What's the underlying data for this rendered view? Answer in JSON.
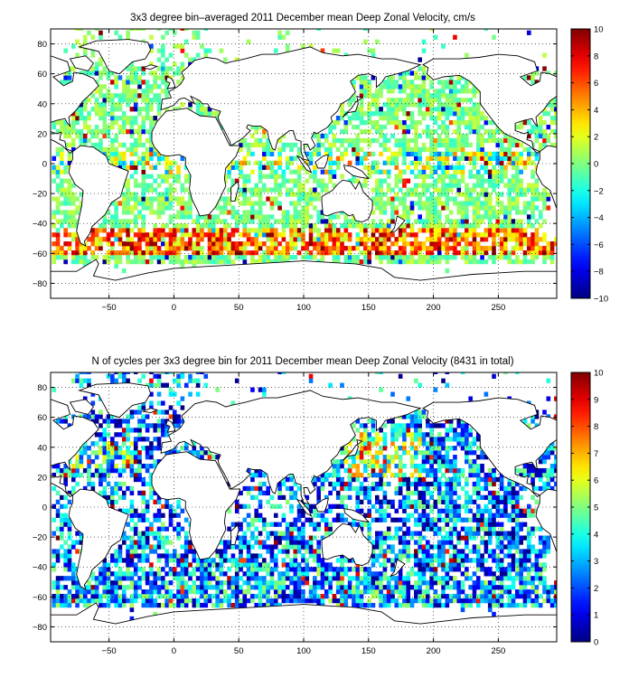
{
  "maps": [
    {
      "id": "velocity",
      "title": "3x3 degree bin–averaged 2011 December mean Deep Zonal Velocity, cm/s",
      "x_ticks": [
        -50,
        0,
        50,
        100,
        150,
        200,
        250
      ],
      "y_ticks": [
        80,
        60,
        40,
        20,
        0,
        -20,
        -40,
        -60,
        -80
      ],
      "xlim": [
        -95,
        295
      ],
      "ylim": [
        -90,
        90
      ],
      "colorbar": {
        "min": -10,
        "max": 10,
        "ticks": [
          10,
          8,
          6,
          4,
          2,
          0,
          -2,
          -4,
          -6,
          -8,
          -10
        ]
      },
      "colormap": "jet",
      "grid": true
    },
    {
      "id": "counts",
      "title": "N of cycles per 3x3 degree bin for 2011 December mean Deep Zonal Velocity (8431 in total)",
      "x_ticks": [
        -50,
        0,
        50,
        100,
        150,
        200,
        250
      ],
      "y_ticks": [
        80,
        60,
        40,
        20,
        0,
        -20,
        -40,
        -60,
        -80
      ],
      "xlim": [
        -95,
        295
      ],
      "ylim": [
        -90,
        90
      ],
      "colorbar": {
        "min": 0,
        "max": 10,
        "ticks": [
          10,
          9,
          8,
          7,
          6,
          5,
          4,
          3,
          2,
          1,
          0
        ]
      },
      "colormap": "jet",
      "grid": true
    }
  ]
}
